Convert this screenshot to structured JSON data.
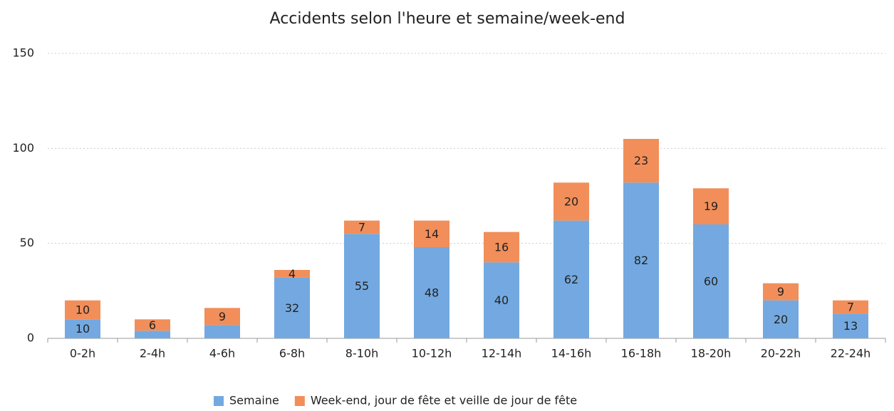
{
  "chart_data": {
    "type": "stacked_bar",
    "title": "Accidents selon l'heure et semaine/week-end",
    "categories": [
      "0-2h",
      "2-4h",
      "4-6h",
      "6-8h",
      "8-10h",
      "10-12h",
      "12-14h",
      "14-16h",
      "16-18h",
      "18-20h",
      "20-22h",
      "22-24h"
    ],
    "series": [
      {
        "name": "Semaine",
        "color": "#73a9e0",
        "values": [
          10,
          4,
          7,
          32,
          55,
          48,
          40,
          62,
          82,
          60,
          20,
          13
        ],
        "value_labels": [
          "10",
          null,
          null,
          "32",
          "55",
          "48",
          "40",
          "62",
          "82",
          "60",
          "20",
          "13"
        ]
      },
      {
        "name": "Week-end, jour de fête et veille de jour de fête",
        "color": "#f28e5a",
        "values": [
          10,
          6,
          9,
          4,
          7,
          14,
          16,
          20,
          23,
          19,
          9,
          7
        ]
      }
    ],
    "ylim": [
      0,
      150
    ],
    "yticks": [
      0,
      50,
      100,
      150
    ],
    "grid": true,
    "legend": "bottom"
  }
}
